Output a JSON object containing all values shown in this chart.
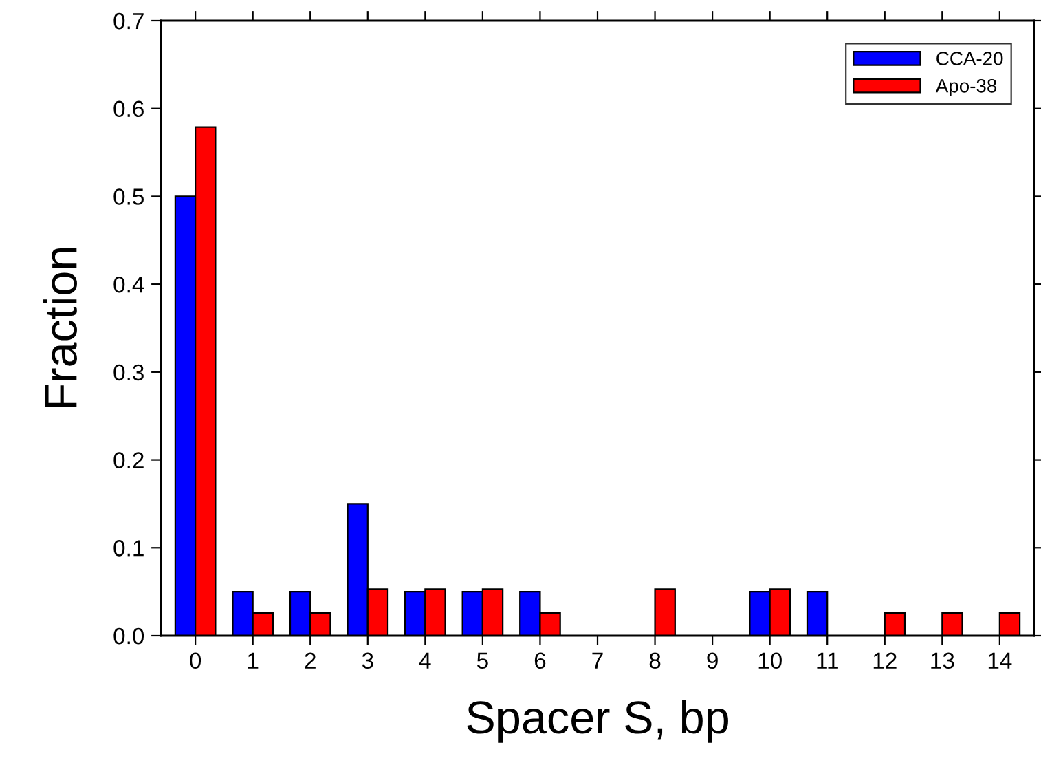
{
  "chart_data": {
    "type": "bar",
    "xlabel": "Spacer S, bp",
    "ylabel": "Fraction",
    "categories": [
      "0",
      "1",
      "2",
      "3",
      "4",
      "5",
      "6",
      "7",
      "8",
      "9",
      "10",
      "11",
      "12",
      "13",
      "14"
    ],
    "series": [
      {
        "name": "CCA-20",
        "color": "#0000ff",
        "values": [
          0.5,
          0.05,
          0.05,
          0.15,
          0.05,
          0.05,
          0.05,
          null,
          null,
          null,
          0.05,
          0.05,
          null,
          null,
          null
        ]
      },
      {
        "name": "Apo-38",
        "color": "#ff0000",
        "values": [
          0.579,
          0.026,
          0.026,
          0.053,
          0.053,
          0.053,
          0.026,
          null,
          0.053,
          null,
          0.053,
          null,
          0.026,
          0.026,
          0.026
        ]
      }
    ],
    "ylim": [
      0,
      0.7
    ],
    "yticks": [
      {
        "value": 0,
        "label": "0.0"
      },
      0.1,
      0.2,
      0.3,
      0.4,
      0.5,
      0.6,
      0.7
    ],
    "grid": false,
    "legend": "top right"
  }
}
